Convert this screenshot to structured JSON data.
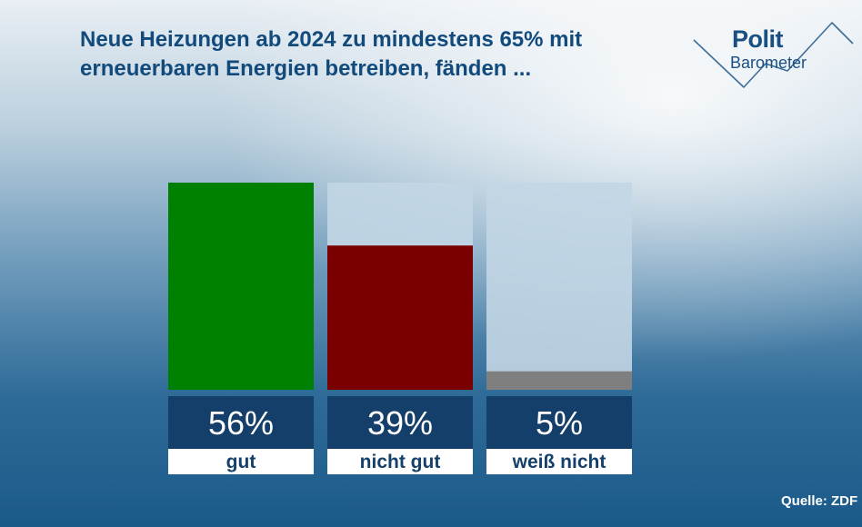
{
  "header": {
    "title": "Neue Heizungen ab 2024 zu mindestens 65% mit erneuerbaren Energien betreiben, fänden ..."
  },
  "logo": {
    "line1": "Polit",
    "line2": "Barometer"
  },
  "source": "Quelle: ZDF",
  "chart_data": {
    "type": "bar",
    "title": "Neue Heizungen ab 2024 zu mindestens 65% mit erneuerbaren Energien betreiben, fänden ...",
    "categories": [
      "gut",
      "nicht gut",
      "weiß nicht"
    ],
    "values": [
      56,
      39,
      5
    ],
    "value_labels": [
      "56%",
      "39%",
      "5%"
    ],
    "colors": [
      "#008000",
      "#7a0000",
      "#7f7f7f"
    ],
    "ylim": [
      0,
      56
    ],
    "xlabel": "",
    "ylabel": ""
  }
}
